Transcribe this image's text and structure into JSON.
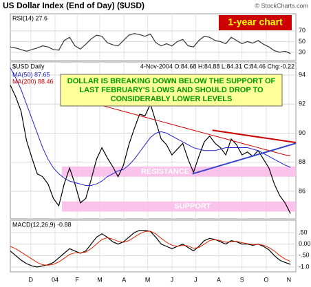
{
  "header": {
    "title": "US Dollar Index (End of Day) ($USD)",
    "credit": "© StockCharts.com",
    "tag": "1-year chart"
  },
  "chart_data": [
    {
      "type": "line",
      "label": "RSI(14) 27.6",
      "ylim": [
        14.5,
        102
      ],
      "yticks": [
        70,
        50,
        30
      ],
      "series": [
        {
          "color": "#333333",
          "values": [
            40,
            38,
            35,
            32,
            35,
            38,
            42,
            40,
            35,
            34,
            52,
            58,
            42,
            36,
            45,
            55,
            62,
            60,
            48,
            44,
            42,
            52,
            62,
            65,
            63,
            60,
            64,
            48,
            42,
            46,
            42,
            50,
            54,
            42,
            40,
            52,
            60,
            58,
            52,
            50,
            46,
            58,
            52,
            46,
            50,
            47,
            52,
            45,
            40,
            33,
            30,
            32,
            27.6
          ]
        }
      ]
    },
    {
      "type": "line",
      "label": "$USD Daily",
      "quote": "4-Nov-2004 O:84.68 H:84.88 L:84.31 C:84.46 Chg:-0.22",
      "annotation": [
        "DOLLAR IS BREAKING DOWN BELOW THE SUPPORT OF",
        "LAST FEBRUARY'S LOWS AND SHOULD DROP TO",
        "CONSIDERABLY LOWER LEVELS"
      ],
      "xlim": [
        0,
        53
      ],
      "xticks": [
        {
          "value": 3.8,
          "label": "D"
        },
        {
          "value": 8.3,
          "label": "04"
        },
        {
          "value": 12.4,
          "label": "F"
        },
        {
          "value": 16.6,
          "label": "M"
        },
        {
          "value": 21.1,
          "label": "A"
        },
        {
          "value": 25.5,
          "label": "M"
        },
        {
          "value": 30,
          "label": "J"
        },
        {
          "value": 34.4,
          "label": "J"
        },
        {
          "value": 38.7,
          "label": "A"
        },
        {
          "value": 43,
          "label": "S"
        },
        {
          "value": 47.5,
          "label": "O"
        },
        {
          "value": 51.7,
          "label": "N"
        }
      ],
      "ylim": [
        84.1,
        94.9
      ],
      "yticks": [
        94,
        92,
        90,
        88,
        86
      ],
      "bands": [
        {
          "label": "RESISTANCE",
          "range": [
            87.0,
            87.7
          ],
          "color": "#f9b8e8"
        },
        {
          "label": "SUPPORT",
          "range": [
            84.6,
            85.3
          ],
          "color": "#f9b8e8"
        }
      ],
      "trendlines": [
        {
          "color": "#cc0000",
          "x": [
            37.5,
            53
          ],
          "y": [
            90.2,
            89.35
          ]
        },
        {
          "color": "#3344cc",
          "x": [
            33.8,
            53
          ],
          "y": [
            87.2,
            89.3
          ]
        }
      ],
      "x": [
        0,
        1,
        2,
        3,
        4,
        5,
        6,
        7,
        8,
        9,
        10,
        11,
        12,
        13,
        14,
        15,
        16,
        17,
        18,
        19,
        20,
        21,
        22,
        23,
        24,
        25,
        26,
        27,
        28,
        29,
        30,
        31,
        32,
        33,
        34,
        35,
        36,
        37,
        38,
        39,
        40,
        41,
        42,
        43,
        44,
        45,
        46,
        47,
        48,
        49,
        50,
        51,
        52
      ],
      "series": [
        {
          "color": "#000000",
          "values": [
            93.3,
            92.5,
            91.5,
            89.5,
            88.3,
            87.2,
            87,
            86.5,
            85.5,
            85,
            86.5,
            87.6,
            86.5,
            85.2,
            85.5,
            86.8,
            88.2,
            89,
            88.3,
            87.7,
            87,
            87.8,
            89.2,
            90.3,
            91.3,
            91.2,
            92,
            90.8,
            89.6,
            89.2,
            88.5,
            88.9,
            89.3,
            88.2,
            87.3,
            88.4,
            89.4,
            89.8,
            89.3,
            89,
            88.5,
            89.6,
            89.2,
            88.5,
            88.7,
            88.4,
            88.8,
            88.2,
            87.6,
            86.5,
            85.7,
            85.2,
            84.46
          ]
        },
        {
          "name": "MA(50) 87.65",
          "color": "#2222cc",
          "values": [
            94.5,
            93.8,
            93,
            92,
            91,
            90,
            89,
            88.2,
            87.6,
            87.2,
            86.9,
            86.7,
            86.6,
            86.5,
            86.4,
            86.4,
            86.5,
            86.7,
            87,
            87.2,
            87.4,
            87.5,
            87.8,
            88.2,
            88.7,
            89.2,
            89.7,
            90,
            90.1,
            90,
            89.8,
            89.6,
            89.4,
            89.2,
            89,
            88.9,
            88.8,
            88.8,
            88.8,
            88.9,
            89,
            89,
            89,
            89,
            89,
            88.9,
            88.8,
            88.6,
            88.4,
            88.2,
            88,
            87.8,
            87.65
          ]
        },
        {
          "name": "MA(200) 88.46",
          "color": "#cc0000",
          "values": [
            null,
            null,
            null,
            null,
            null,
            null,
            null,
            null,
            null,
            null,
            null,
            null,
            92.4,
            92.3,
            92.2,
            92.1,
            92.0,
            91.9,
            91.8,
            91.7,
            91.6,
            91.5,
            91.4,
            91.3,
            91.2,
            91.1,
            91.0,
            90.9,
            90.8,
            90.7,
            90.6,
            90.5,
            90.4,
            90.3,
            90.2,
            90.1,
            90.0,
            89.9,
            89.8,
            89.7,
            89.6,
            89.5,
            89.4,
            89.3,
            89.2,
            89.1,
            89.0,
            88.9,
            88.8,
            88.7,
            88.6,
            88.5,
            88.46
          ]
        }
      ]
    },
    {
      "type": "line",
      "label": "MACD(12,26,9) -0.88",
      "ylim": [
        -1.21,
        1.04
      ],
      "yticks": [
        {
          "value": 0.5,
          "label": ".50"
        },
        {
          "value": 0,
          "label": "0.00"
        },
        {
          "value": -0.5,
          "label": "-.50"
        },
        {
          "value": -1,
          "label": "-1.0"
        }
      ],
      "series": [
        {
          "color": "#000000",
          "values": [
            -0.3,
            -0.5,
            -0.7,
            -0.85,
            -0.95,
            -1.0,
            -0.95,
            -0.9,
            -0.8,
            -0.6,
            -0.4,
            -0.2,
            -0.3,
            -0.4,
            -0.3,
            0,
            0.3,
            0.45,
            0.3,
            0.1,
            0,
            0.1,
            0.3,
            0.5,
            0.6,
            0.6,
            0.55,
            0.3,
            0,
            -0.1,
            -0.2,
            -0.1,
            0,
            -0.15,
            -0.3,
            -0.1,
            0.15,
            0.25,
            0.2,
            0.1,
            0,
            0.15,
            0.1,
            0,
            0,
            -0.05,
            0,
            -0.1,
            -0.25,
            -0.5,
            -0.7,
            -0.8,
            -0.88
          ]
        },
        {
          "color": "#dd2200",
          "values": [
            -0.1,
            -0.2,
            -0.35,
            -0.5,
            -0.65,
            -0.8,
            -0.9,
            -0.92,
            -0.88,
            -0.78,
            -0.62,
            -0.45,
            -0.38,
            -0.38,
            -0.35,
            -0.2,
            0,
            0.2,
            0.28,
            0.22,
            0.12,
            0.08,
            0.15,
            0.3,
            0.45,
            0.55,
            0.56,
            0.45,
            0.25,
            0.08,
            -0.05,
            -0.1,
            -0.05,
            -0.08,
            -0.18,
            -0.15,
            0,
            0.15,
            0.2,
            0.15,
            0.08,
            0.1,
            0.12,
            0.06,
            0.02,
            -0.02,
            -0.01,
            -0.05,
            -0.15,
            -0.3,
            -0.5,
            -0.65,
            -0.75
          ]
        }
      ]
    }
  ]
}
